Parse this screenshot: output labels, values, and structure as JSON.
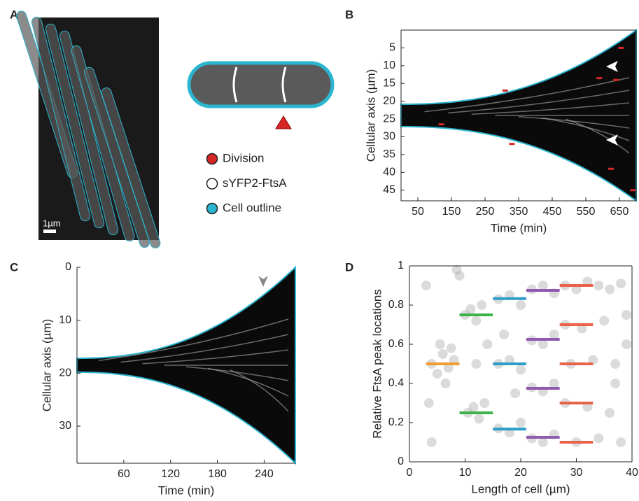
{
  "panels": {
    "a": "A",
    "b": "B",
    "c": "C",
    "d": "D"
  },
  "image": {
    "scale_bar": "1µm"
  },
  "legend": {
    "items": [
      {
        "name": "Division",
        "color": "#d62728"
      },
      {
        "name": "sYFP2-FtsA",
        "color": "#ffffff"
      },
      {
        "name": "Cell outline",
        "color": "#2bb5cf"
      }
    ]
  },
  "chart_data": [
    {
      "type": "kymograph",
      "xlabel": "Time (min)",
      "ylabel": "Cellular axis (µm)",
      "xlim": [
        0,
        700
      ],
      "ylim": [
        0,
        48
      ],
      "y_reversed": true,
      "xticks": [
        50,
        150,
        250,
        350,
        450,
        550,
        650
      ],
      "yticks": [
        5,
        10,
        15,
        20,
        25,
        30,
        35,
        40,
        45
      ],
      "divisions": {
        "color": "#d62728",
        "x": [
          120,
          310,
          330,
          590,
          625,
          640,
          655,
          690
        ],
        "y": [
          26.5,
          17,
          32,
          13.5,
          39,
          14,
          5,
          45
        ]
      }
    },
    {
      "type": "kymograph",
      "xlabel": "Time (min)",
      "ylabel": "Cellular axis (µm)",
      "xlim": [
        0,
        280
      ],
      "ylim": [
        0,
        37
      ],
      "y_reversed": true,
      "xticks": [
        60,
        120,
        180,
        240
      ],
      "yticks": [
        0,
        10,
        20,
        30
      ]
    },
    {
      "type": "scatter",
      "xlabel": "Length of cell (µm)",
      "ylabel": "Relative FtsA peak locations",
      "xlim": [
        0,
        40
      ],
      "ylim": [
        0,
        1
      ],
      "xticks": [
        0,
        10,
        20,
        30,
        40
      ],
      "yticks": [
        0,
        0.2,
        0.4,
        0.6,
        0.8,
        1
      ],
      "color": "#b0b0b0",
      "x": [
        4,
        5,
        6,
        7,
        8,
        5.5,
        6.5,
        7.5,
        3,
        4,
        3.5,
        8.5,
        9,
        10,
        11,
        12,
        13,
        10.5,
        11.5,
        12.5,
        13.5,
        12,
        14,
        16,
        18,
        20,
        16,
        18,
        20,
        16,
        18,
        20,
        17,
        19,
        22,
        24,
        26,
        22,
        24,
        26,
        22,
        24,
        26,
        22,
        24,
        26,
        28,
        30,
        32,
        34,
        36,
        38,
        28,
        31,
        35,
        39,
        29,
        33,
        37,
        28,
        32,
        36,
        30,
        34,
        38,
        39,
        37
      ],
      "values": [
        0.5,
        0.45,
        0.55,
        0.48,
        0.52,
        0.6,
        0.4,
        0.58,
        0.9,
        0.1,
        0.3,
        0.98,
        0.95,
        0.75,
        0.78,
        0.72,
        0.8,
        0.25,
        0.28,
        0.22,
        0.3,
        0.5,
        0.6,
        0.83,
        0.85,
        0.8,
        0.5,
        0.52,
        0.47,
        0.17,
        0.15,
        0.2,
        0.65,
        0.35,
        0.88,
        0.9,
        0.86,
        0.62,
        0.6,
        0.65,
        0.38,
        0.36,
        0.4,
        0.12,
        0.1,
        0.14,
        0.9,
        0.88,
        0.92,
        0.9,
        0.88,
        0.91,
        0.7,
        0.68,
        0.72,
        0.75,
        0.5,
        0.52,
        0.5,
        0.3,
        0.28,
        0.25,
        0.1,
        0.12,
        0.1,
        0.6,
        0.4
      ],
      "segments": [
        {
          "color": "#f39c33",
          "xrange": [
            3,
            9
          ],
          "values": [
            0.5
          ]
        },
        {
          "color": "#3cb44b",
          "xrange": [
            9,
            15
          ],
          "values": [
            0.75,
            0.25
          ]
        },
        {
          "color": "#2e9ec9",
          "xrange": [
            15,
            21
          ],
          "values": [
            0.833,
            0.5,
            0.167
          ]
        },
        {
          "color": "#8e5bb0",
          "xrange": [
            21,
            27
          ],
          "values": [
            0.875,
            0.625,
            0.375,
            0.125
          ]
        },
        {
          "color": "#e8634a",
          "xrange": [
            27,
            33
          ],
          "values": [
            0.9,
            0.7,
            0.5,
            0.3,
            0.1
          ]
        }
      ]
    }
  ]
}
